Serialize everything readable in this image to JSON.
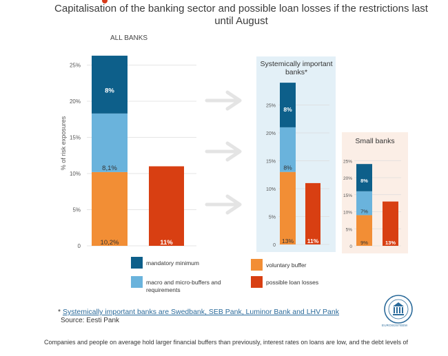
{
  "title": "Capitalisation of the banking sector and possible loan losses if the restrictions last until August",
  "colors": {
    "mandatory": "#0d5f8a",
    "macro": "#6ab3dc",
    "voluntary": "#f28e35",
    "losses": "#d83f12",
    "arrow": "#e4e4e4",
    "sys_bg": "#e3f0f7",
    "small_bg": "#fbeee6"
  },
  "chart_data": [
    {
      "type": "bar",
      "title": "ALL BANKS",
      "ylabel": "% of risk exposures",
      "ylim": [
        0,
        26
      ],
      "yticks": [
        "0",
        "5%",
        "10%",
        "15%",
        "20%",
        "25%"
      ],
      "stacked": [
        {
          "name": "voluntary buffer",
          "value": 10.2,
          "label": "10,2%"
        },
        {
          "name": "macro and micro-buffers and requirements",
          "value": 8.1,
          "label": "8,1%"
        },
        {
          "name": "mandatory minimum",
          "value": 8.0,
          "label": "8%"
        }
      ],
      "losses": {
        "name": "possible loan losses",
        "value": 11,
        "label": "11%"
      }
    },
    {
      "type": "bar",
      "title": "Systemically important banks*",
      "ylim": [
        0,
        29
      ],
      "yticks": [
        "0",
        "5%",
        "10%",
        "15%",
        "20%",
        "25%"
      ],
      "stacked": [
        {
          "name": "voluntary buffer",
          "value": 13,
          "label": "13%"
        },
        {
          "name": "macro and micro-buffers and requirements",
          "value": 8,
          "label": "8%"
        },
        {
          "name": "mandatory minimum",
          "value": 8,
          "label": "8%"
        }
      ],
      "losses": {
        "name": "possible loan losses",
        "value": 11,
        "label": "11%"
      }
    },
    {
      "type": "bar",
      "title": "Small banks",
      "ylim": [
        0,
        25
      ],
      "yticks": [
        "0",
        "5%",
        "10%",
        "15%",
        "20%",
        "25%"
      ],
      "stacked": [
        {
          "name": "voluntary buffer",
          "value": 9,
          "label": "9%"
        },
        {
          "name": "macro and micro-buffers and requirements",
          "value": 7,
          "label": "7%"
        },
        {
          "name": "mandatory minimum",
          "value": 8,
          "label": "8%"
        }
      ],
      "losses": {
        "name": "possible loan losses",
        "value": 13,
        "label": "13%"
      }
    }
  ],
  "legend": {
    "mandatory": "mandatory minimum",
    "macro": "macro and micro-buffers and requirements",
    "voluntary": "voluntary buffer",
    "losses": "possible loan losses"
  },
  "footnote": {
    "marker": "*",
    "text": "Systemically important banks are Swedbank, SEB Pank, Luminor Bank and LHV Pank"
  },
  "source": "Source: Eesti Pank",
  "bottom_text": "Companies and people on average hold larger financial buffers than previously, interest rates on loans are low, and the debt levels of",
  "logo_text": "EUROSÜSTEEM"
}
